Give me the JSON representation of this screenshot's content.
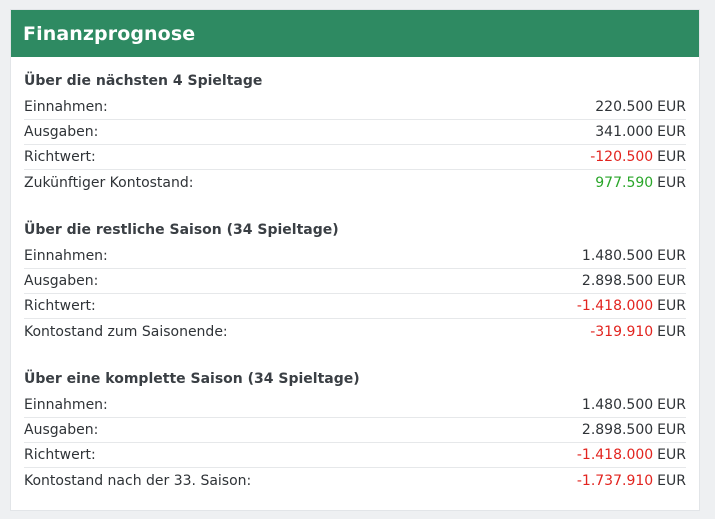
{
  "panel": {
    "title": "Finanzprognose"
  },
  "colors": {
    "header": "#2e8a62",
    "negative": "#e2241f",
    "positive": "#2aa62a"
  },
  "sections": [
    {
      "title": "Über die nächsten 4 Spieltage",
      "rows": [
        {
          "label": "Einnahmen:",
          "value": "220.500",
          "currency": "EUR",
          "tone": "neutral"
        },
        {
          "label": "Ausgaben:",
          "value": "341.000",
          "currency": "EUR",
          "tone": "neutral"
        },
        {
          "label": "Richtwert:",
          "value": "-120.500",
          "currency": "EUR",
          "tone": "negative"
        },
        {
          "label": "Zukünftiger Kontostand:",
          "value": "977.590",
          "currency": "EUR",
          "tone": "positive"
        }
      ]
    },
    {
      "title": "Über die restliche Saison (34 Spieltage)",
      "rows": [
        {
          "label": "Einnahmen:",
          "value": "1.480.500",
          "currency": "EUR",
          "tone": "neutral"
        },
        {
          "label": "Ausgaben:",
          "value": "2.898.500",
          "currency": "EUR",
          "tone": "neutral"
        },
        {
          "label": "Richtwert:",
          "value": "-1.418.000",
          "currency": "EUR",
          "tone": "negative"
        },
        {
          "label": "Kontostand zum Saisonende:",
          "value": "-319.910",
          "currency": "EUR",
          "tone": "negative"
        }
      ]
    },
    {
      "title": "Über eine komplette Saison (34 Spieltage)",
      "rows": [
        {
          "label": "Einnahmen:",
          "value": "1.480.500",
          "currency": "EUR",
          "tone": "neutral"
        },
        {
          "label": "Ausgaben:",
          "value": "2.898.500",
          "currency": "EUR",
          "tone": "neutral"
        },
        {
          "label": "Richtwert:",
          "value": "-1.418.000",
          "currency": "EUR",
          "tone": "negative"
        },
        {
          "label": "Kontostand nach der 33. Saison:",
          "value": "-1.737.910",
          "currency": "EUR",
          "tone": "negative"
        }
      ]
    }
  ]
}
